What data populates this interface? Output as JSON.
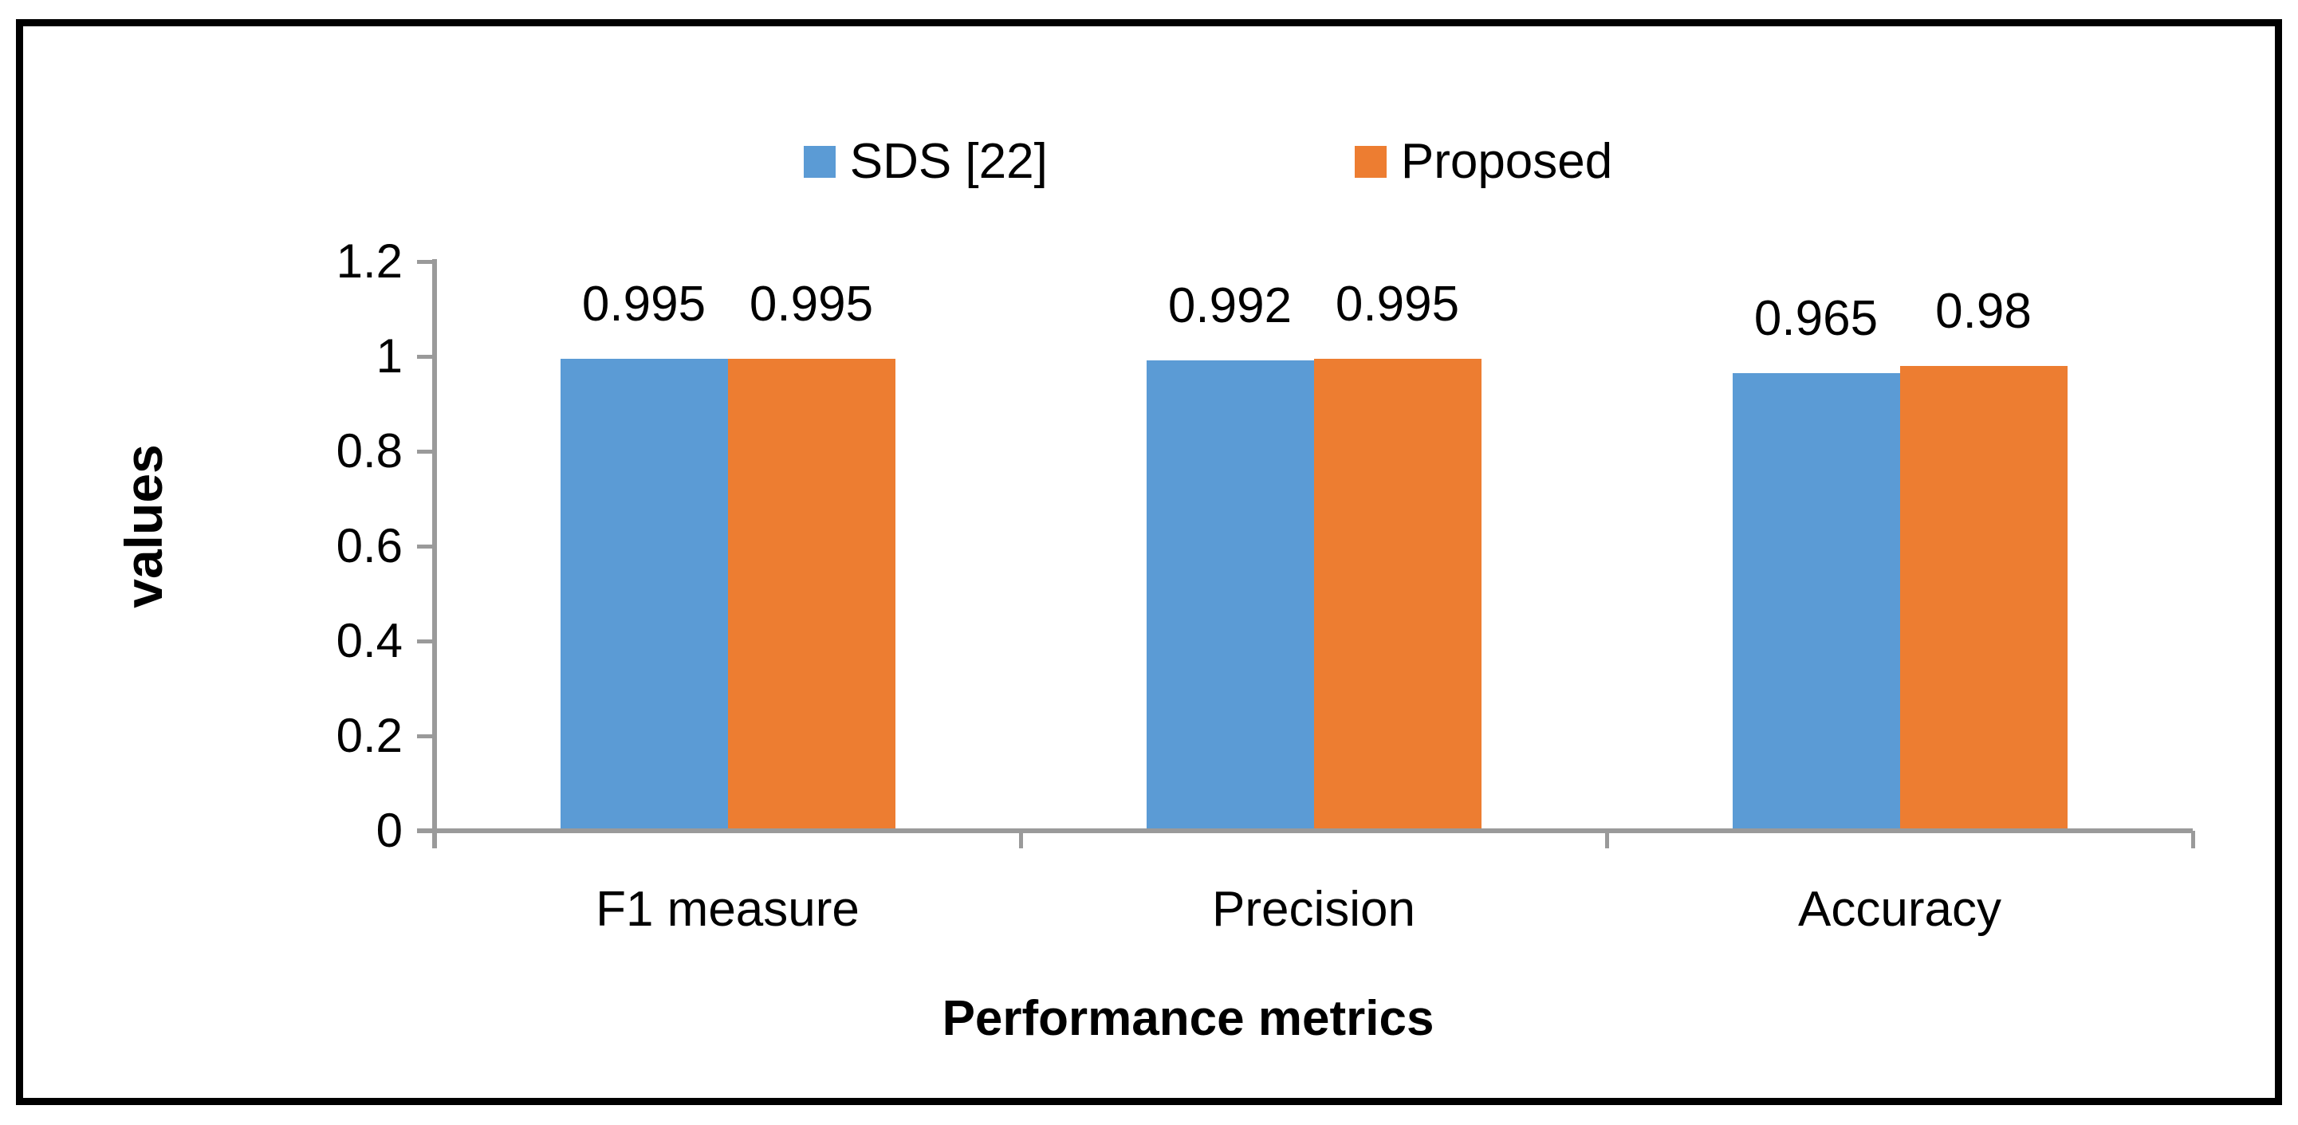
{
  "legend": {
    "series1_label": "SDS [22]",
    "series2_label": "Proposed"
  },
  "chart_data": {
    "type": "bar",
    "categories": [
      "F1 measure",
      "Precision",
      "Accuracy"
    ],
    "series": [
      {
        "name": "SDS [22]",
        "color": "#5B9BD5",
        "values": [
          0.995,
          0.992,
          0.965
        ]
      },
      {
        "name": "Proposed",
        "color": "#ED7D31",
        "values": [
          0.995,
          0.995,
          0.98
        ]
      }
    ],
    "data_labels": [
      [
        "0.995",
        "0.992",
        "0.965"
      ],
      [
        "0.995",
        "0.995",
        "0.98"
      ]
    ],
    "title": "",
    "xlabel": "Performance metrics",
    "ylabel": "values",
    "ylim": [
      0,
      1.2
    ],
    "y_ticks": [
      "1.2",
      "1",
      "0.8",
      "0.6",
      "0.4",
      "0.2",
      "0"
    ],
    "grid": false,
    "legend_position": "top-center",
    "axis_color": "#9a9a9a",
    "frame_color": "#000000"
  }
}
